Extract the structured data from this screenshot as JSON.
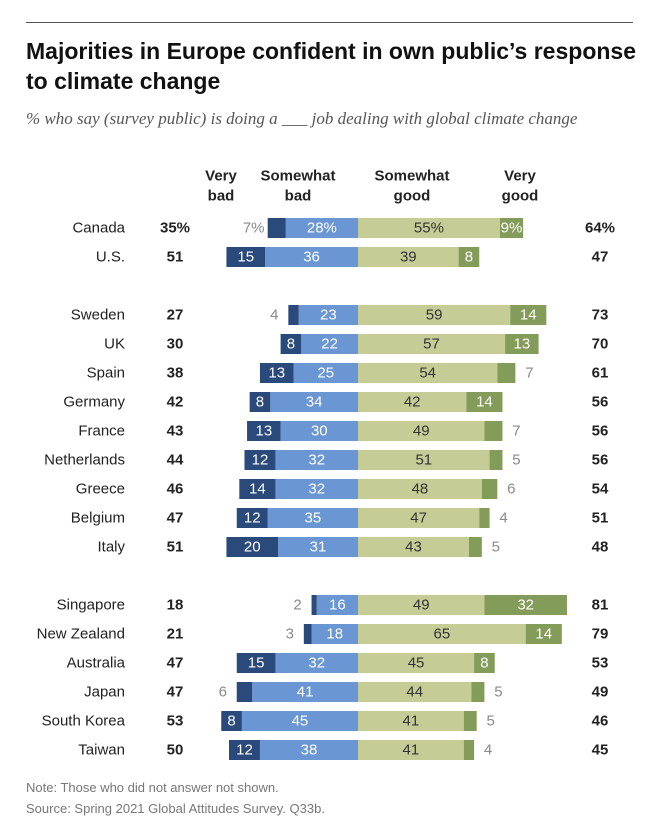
{
  "title": "Majorities in Europe confident in own public’s response to climate change",
  "subtitle": "% who say (survey public) is doing a ___ job dealing with global climate change",
  "note": "Note: Those who did not answer not shown.",
  "source": "Source: Spring 2021 Global Attitudes Survey. Q33b.",
  "colors": {
    "very_bad": "#2b4a7c",
    "somewhat_bad": "#6a96d3",
    "somewhat_good": "#c5cc96",
    "very_good": "#849c5a",
    "outside_label": "#8a8a8a"
  },
  "chart_data": {
    "type": "bar",
    "subtype": "diverging-stacked",
    "headers": {
      "very_bad": [
        "Very",
        "bad"
      ],
      "somewhat_bad": [
        "Somewhat",
        "bad"
      ],
      "somewhat_good": [
        "Somewhat",
        "good"
      ],
      "very_good": [
        "Very",
        "good"
      ]
    },
    "groups": [
      {
        "rows": [
          {
            "country": "Canada",
            "bad_total": "35%",
            "very_bad": 7,
            "somewhat_bad": 28,
            "somewhat_good": 55,
            "very_good": 9,
            "good_total": "64%",
            "pct": true
          },
          {
            "country": "U.S.",
            "bad_total": "51",
            "very_bad": 15,
            "somewhat_bad": 36,
            "somewhat_good": 39,
            "very_good": 8,
            "good_total": "47"
          }
        ]
      },
      {
        "rows": [
          {
            "country": "Sweden",
            "bad_total": "27",
            "very_bad": 4,
            "somewhat_bad": 23,
            "somewhat_good": 59,
            "very_good": 14,
            "good_total": "73"
          },
          {
            "country": "UK",
            "bad_total": "30",
            "very_bad": 8,
            "somewhat_bad": 22,
            "somewhat_good": 57,
            "very_good": 13,
            "good_total": "70"
          },
          {
            "country": "Spain",
            "bad_total": "38",
            "very_bad": 13,
            "somewhat_bad": 25,
            "somewhat_good": 54,
            "very_good": 7,
            "good_total": "61"
          },
          {
            "country": "Germany",
            "bad_total": "42",
            "very_bad": 8,
            "somewhat_bad": 34,
            "somewhat_good": 42,
            "very_good": 14,
            "good_total": "56"
          },
          {
            "country": "France",
            "bad_total": "43",
            "very_bad": 13,
            "somewhat_bad": 30,
            "somewhat_good": 49,
            "very_good": 7,
            "good_total": "56"
          },
          {
            "country": "Netherlands",
            "bad_total": "44",
            "very_bad": 12,
            "somewhat_bad": 32,
            "somewhat_good": 51,
            "very_good": 5,
            "good_total": "56"
          },
          {
            "country": "Greece",
            "bad_total": "46",
            "very_bad": 14,
            "somewhat_bad": 32,
            "somewhat_good": 48,
            "very_good": 6,
            "good_total": "54"
          },
          {
            "country": "Belgium",
            "bad_total": "47",
            "very_bad": 12,
            "somewhat_bad": 35,
            "somewhat_good": 47,
            "very_good": 4,
            "good_total": "51"
          },
          {
            "country": "Italy",
            "bad_total": "51",
            "very_bad": 20,
            "somewhat_bad": 31,
            "somewhat_good": 43,
            "very_good": 5,
            "good_total": "48"
          }
        ]
      },
      {
        "rows": [
          {
            "country": "Singapore",
            "bad_total": "18",
            "very_bad": 2,
            "somewhat_bad": 16,
            "somewhat_good": 49,
            "very_good": 32,
            "good_total": "81"
          },
          {
            "country": "New Zealand",
            "bad_total": "21",
            "very_bad": 3,
            "somewhat_bad": 18,
            "somewhat_good": 65,
            "very_good": 14,
            "good_total": "79"
          },
          {
            "country": "Australia",
            "bad_total": "47",
            "very_bad": 15,
            "somewhat_bad": 32,
            "somewhat_good": 45,
            "very_good": 8,
            "good_total": "53"
          },
          {
            "country": "Japan",
            "bad_total": "47",
            "very_bad": 6,
            "somewhat_bad": 41,
            "somewhat_good": 44,
            "very_good": 5,
            "good_total": "49"
          },
          {
            "country": "South Korea",
            "bad_total": "53",
            "very_bad": 8,
            "somewhat_bad": 45,
            "somewhat_good": 41,
            "very_good": 5,
            "good_total": "46"
          },
          {
            "country": "Taiwan",
            "bad_total": "50",
            "very_bad": 12,
            "somewhat_bad": 38,
            "somewhat_good": 41,
            "very_good": 4,
            "good_total": "45"
          }
        ]
      }
    ]
  }
}
